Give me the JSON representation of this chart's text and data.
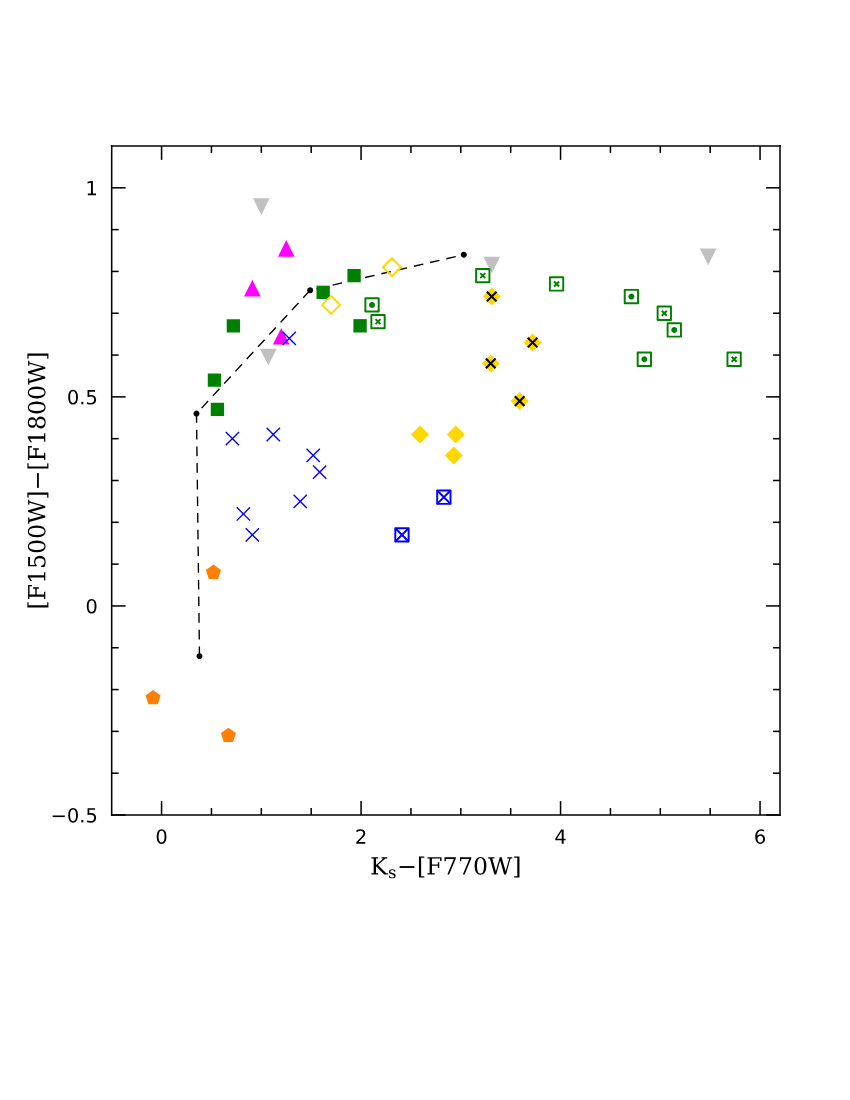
{
  "chart_data": {
    "type": "scatter",
    "xlabel": "K$_{s}$−[F770W]",
    "ylabel": "[F1500W]−[F1800W]",
    "xlim": [
      -0.5,
      6.2
    ],
    "ylim": [
      -0.5,
      1.1
    ],
    "xticks": [
      0,
      {
        "value": 0.5,
        "label": null
      },
      {
        "value": 1,
        "label": null
      },
      {
        "value": 1.5,
        "label": null
      },
      2,
      {
        "value": 2.5,
        "label": null
      },
      {
        "value": 3,
        "label": null
      },
      {
        "value": 3.5,
        "label": null
      },
      4,
      {
        "value": 4.5,
        "label": null
      },
      {
        "value": 5,
        "label": null
      },
      {
        "value": 5.5,
        "label": null
      },
      6
    ],
    "yticks": [
      {
        "value": -0.5,
        "label": "−0.5"
      },
      {
        "value": -0.4,
        "label": null
      },
      {
        "value": -0.3,
        "label": null
      },
      {
        "value": -0.2,
        "label": null
      },
      {
        "value": -0.1,
        "label": null
      },
      0,
      {
        "value": 0.1,
        "label": null
      },
      {
        "value": 0.2,
        "label": null
      },
      {
        "value": 0.3,
        "label": null
      },
      {
        "value": 0.4,
        "label": null
      },
      0.5,
      {
        "value": 0.6,
        "label": null
      },
      {
        "value": 0.7,
        "label": null
      },
      {
        "value": 0.8,
        "label": null
      },
      {
        "value": 0.9,
        "label": null
      },
      1
    ],
    "series": [
      {
        "type": "line",
        "color": "#000000",
        "marker": "circle",
        "line_style": "dashed",
        "x": [
          0.38,
          0.35,
          1.49,
          3.03
        ],
        "values": [
          -0.12,
          0.46,
          0.755,
          0.84
        ]
      },
      {
        "color": "#c0c0c0",
        "marker": "triangle-down",
        "x": [
          1.0,
          1.07,
          3.31,
          5.48
        ],
        "values": [
          0.955,
          0.595,
          0.815,
          0.835
        ]
      },
      {
        "color": "#ff00ff",
        "marker": "triangle",
        "x": [
          0.91,
          1.25,
          1.2
        ],
        "values": [
          0.76,
          0.855,
          0.645
        ]
      },
      {
        "color": "#008000",
        "marker": "square",
        "x": [
          0.53,
          0.56,
          0.72,
          1.62,
          1.93,
          1.99
        ],
        "values": [
          0.54,
          0.47,
          0.67,
          0.75,
          0.79,
          0.67
        ]
      },
      {
        "color": "#ffd700",
        "marker": "diamond-open",
        "x": [
          1.7,
          2.31
        ],
        "values": [
          0.72,
          0.81
        ]
      },
      {
        "color": "#008000",
        "marker": "square-dot",
        "x": [
          2.11,
          4.71,
          4.84,
          5.14
        ],
        "values": [
          0.72,
          0.74,
          0.59,
          0.66
        ]
      },
      {
        "color": "#008000",
        "marker": "square-cross",
        "x": [
          2.17,
          3.22,
          3.96,
          5.04,
          5.74
        ],
        "values": [
          0.68,
          0.79,
          0.77,
          0.7,
          0.59
        ]
      },
      {
        "color": "#ffd700",
        "marker": "diamond-cross",
        "x": [
          3.3,
          3.31,
          3.59,
          3.72
        ],
        "values": [
          0.58,
          0.74,
          0.49,
          0.63
        ]
      },
      {
        "color": "#ffd700",
        "marker": "diamond",
        "x": [
          2.59,
          2.93,
          2.95
        ],
        "values": [
          0.41,
          0.36,
          0.41
        ]
      },
      {
        "color": "#0000ff",
        "marker": "cross",
        "x": [
          0.71,
          0.82,
          0.91,
          1.12,
          1.28,
          1.39,
          1.52,
          1.585
        ],
        "values": [
          0.4,
          0.22,
          0.17,
          0.41,
          0.64,
          0.25,
          0.36,
          0.32
        ]
      },
      {
        "color": "#0000ff",
        "marker": "square-x",
        "x": [
          2.41,
          2.83
        ],
        "values": [
          0.17,
          0.26
        ]
      },
      {
        "color": "#ff8000",
        "x": [
          -0.085,
          0.52,
          0.67
        ],
        "values": [
          -0.22,
          0.08,
          -0.31
        ]
      }
    ]
  }
}
